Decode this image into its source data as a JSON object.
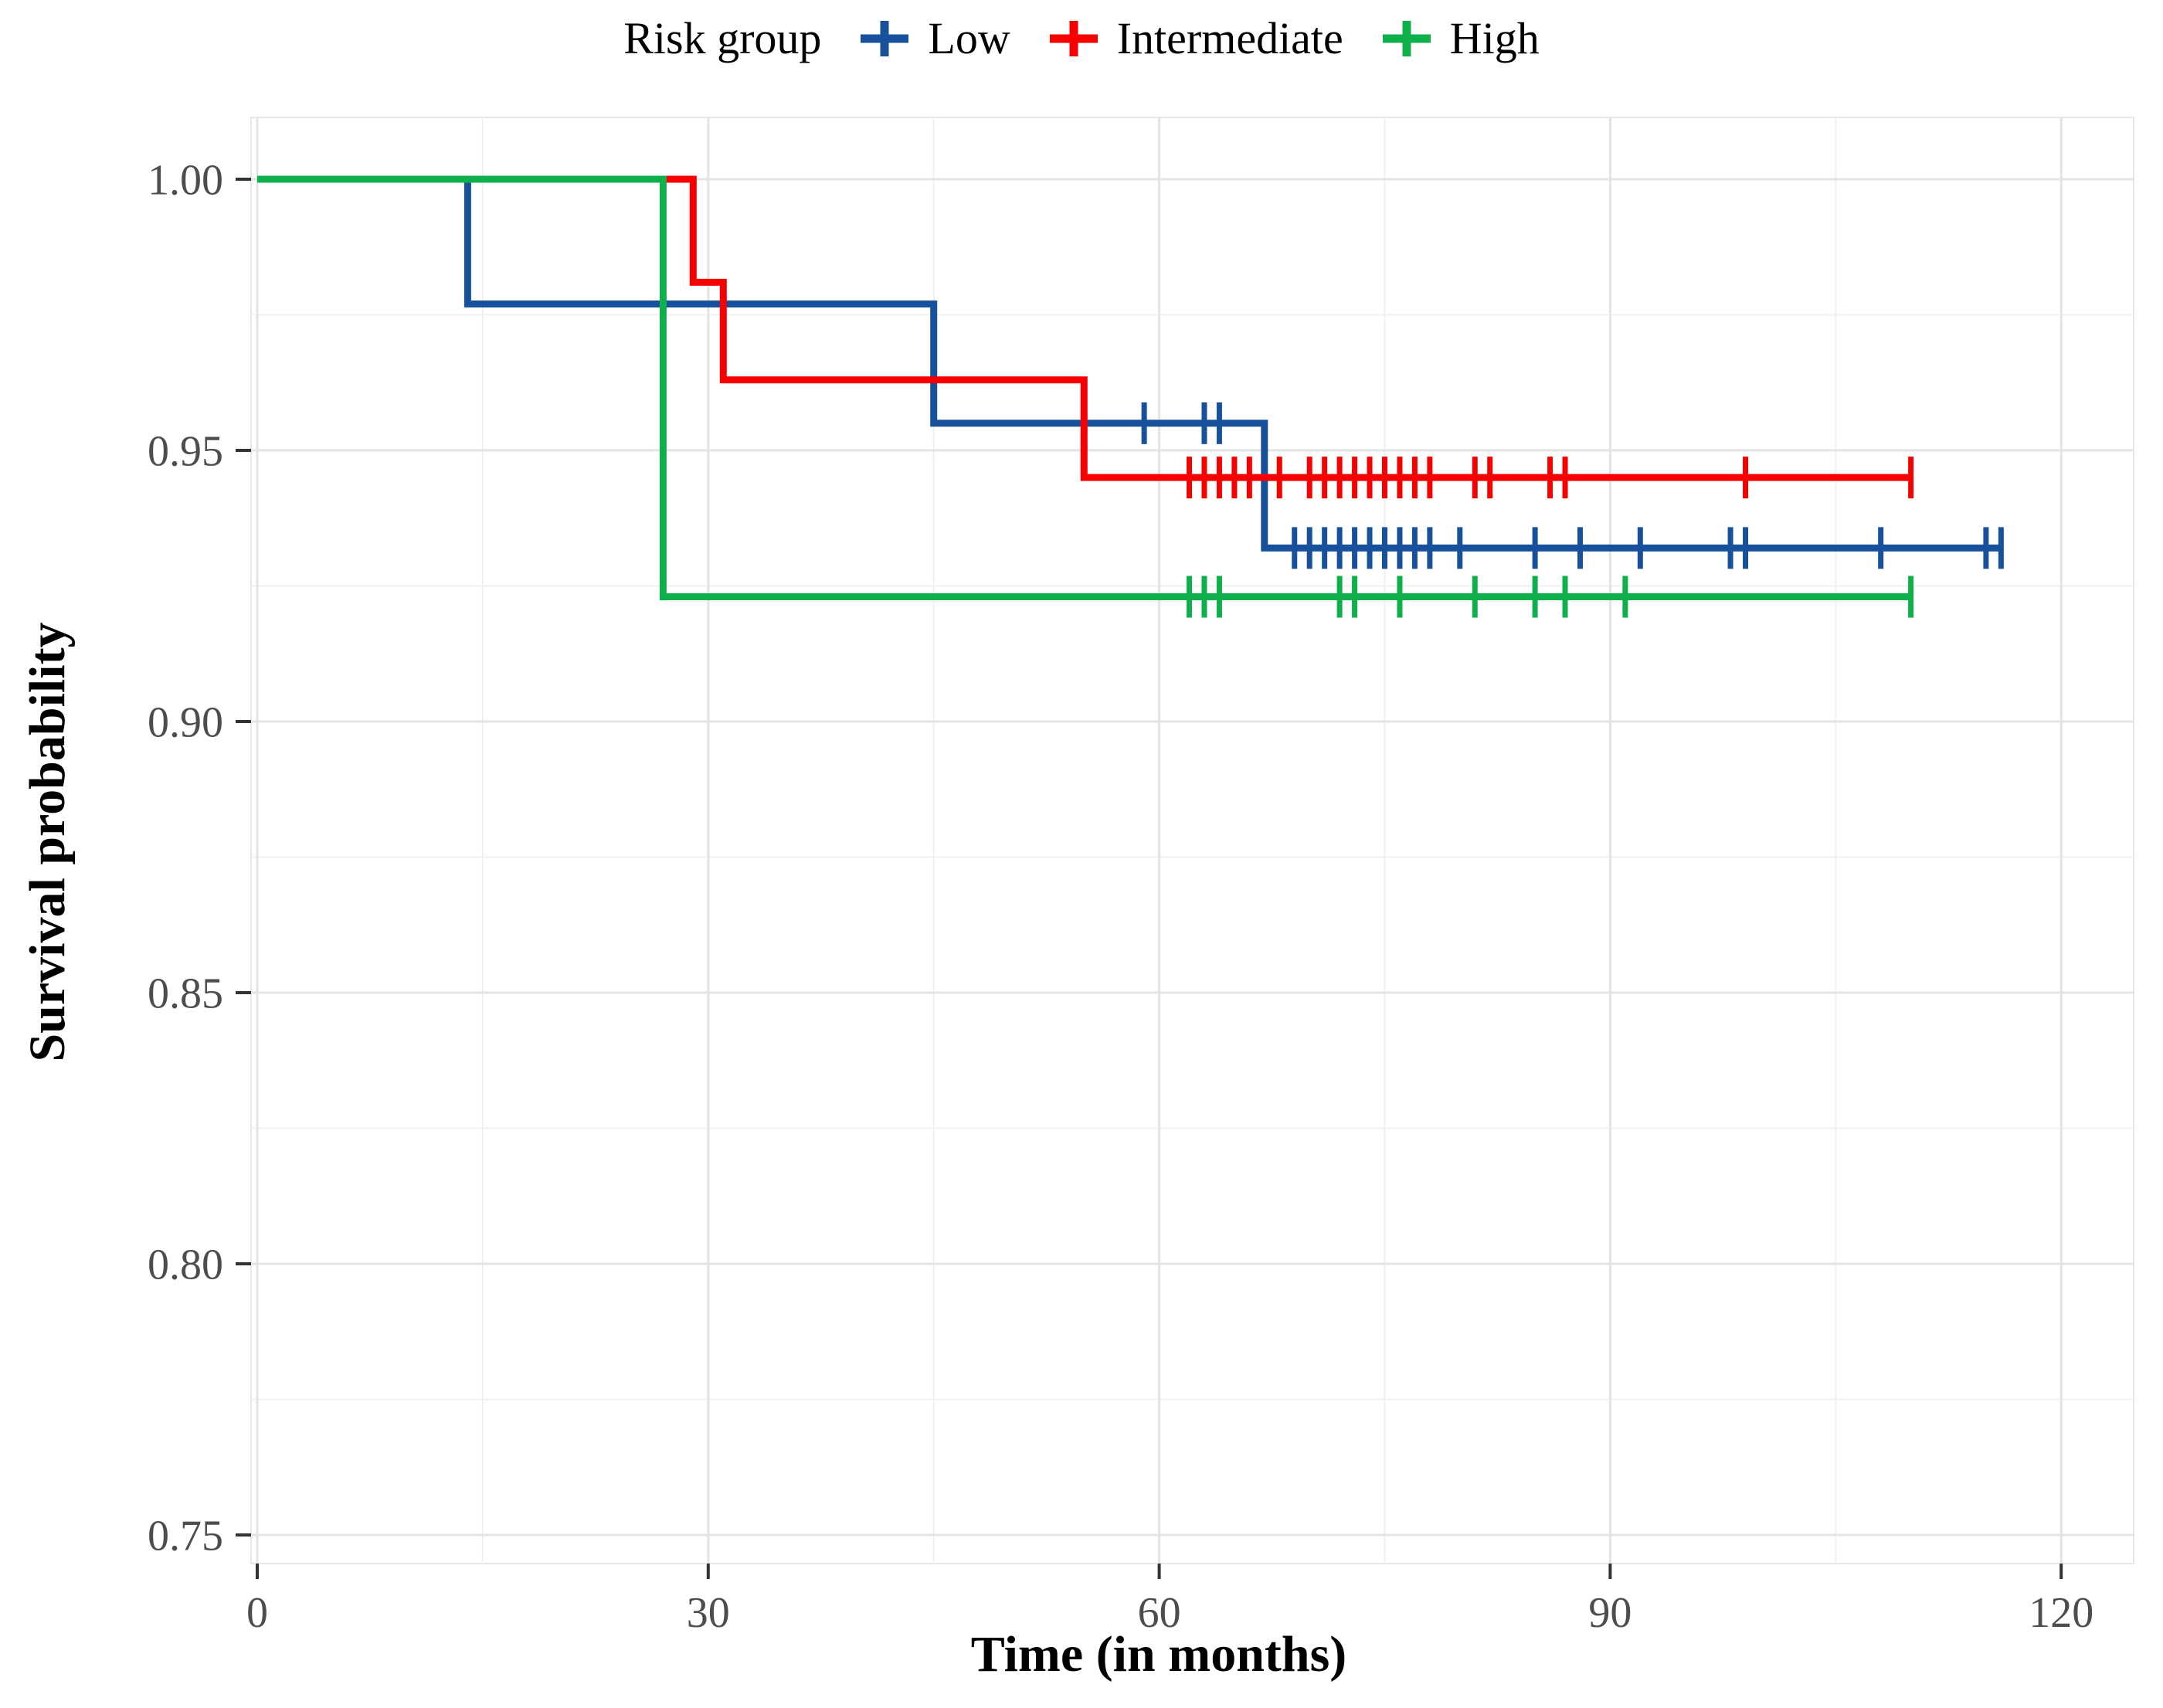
{
  "chart_data": {
    "type": "line",
    "subtype": "kaplan-meier-step-curves",
    "title": "",
    "legend_title": "Risk group",
    "legend_position": "top",
    "xlabel": "Time (in months)",
    "ylabel": "Survival probability",
    "xlim": [
      0,
      120
    ],
    "ylim": [
      0.75,
      1.0
    ],
    "xticks": [
      0,
      30,
      60,
      90,
      120
    ],
    "xtick_labels": [
      "0",
      "30",
      "60",
      "90",
      "120"
    ],
    "yticks": [
      1.0,
      0.95,
      0.9,
      0.85,
      0.8,
      0.75
    ],
    "ytick_labels": [
      "1.00",
      "0.95",
      "0.90",
      "0.85",
      "0.80",
      "0.75"
    ],
    "xticks_minor": [
      15,
      45,
      75,
      105
    ],
    "yticks_minor": [
      0.975,
      0.925,
      0.875,
      0.825,
      0.775
    ],
    "grid": true,
    "colors": {
      "background": "#FFFFFF",
      "grid_major": "#E4E4E4",
      "grid_minor": "#F1F1F1",
      "panel_border": "#E7E7E7",
      "tick_mark": "#333333",
      "tick_label": "#4D4D4D",
      "axis_title": "#000000"
    },
    "series": [
      {
        "name": "Low",
        "color": "#17519C",
        "steps": [
          [
            0,
            1.0
          ],
          [
            14,
            1.0
          ],
          [
            14,
            0.977
          ],
          [
            45,
            0.977
          ],
          [
            45,
            0.955
          ],
          [
            67,
            0.955
          ],
          [
            67,
            0.932
          ],
          [
            116,
            0.932
          ]
        ],
        "censor_marks": [
          [
            59,
            0.955
          ],
          [
            63,
            0.955
          ],
          [
            64,
            0.955
          ],
          [
            69,
            0.932
          ],
          [
            70,
            0.932
          ],
          [
            71,
            0.932
          ],
          [
            72,
            0.932
          ],
          [
            73,
            0.932
          ],
          [
            74,
            0.932
          ],
          [
            75,
            0.932
          ],
          [
            76,
            0.932
          ],
          [
            77,
            0.932
          ],
          [
            78,
            0.932
          ],
          [
            80,
            0.932
          ],
          [
            85,
            0.932
          ],
          [
            88,
            0.932
          ],
          [
            92,
            0.932
          ],
          [
            98,
            0.932
          ],
          [
            99,
            0.932
          ],
          [
            108,
            0.932
          ],
          [
            115,
            0.932
          ],
          [
            116,
            0.932
          ]
        ]
      },
      {
        "name": "Intermediate",
        "color": "#F60000",
        "steps": [
          [
            0,
            1.0
          ],
          [
            29,
            1.0
          ],
          [
            29,
            0.981
          ],
          [
            31,
            0.981
          ],
          [
            31,
            0.963
          ],
          [
            55,
            0.963
          ],
          [
            55,
            0.945
          ],
          [
            110,
            0.945
          ]
        ],
        "censor_marks": [
          [
            62,
            0.945
          ],
          [
            63,
            0.945
          ],
          [
            64,
            0.945
          ],
          [
            65,
            0.945
          ],
          [
            66,
            0.945
          ],
          [
            68,
            0.945
          ],
          [
            70,
            0.945
          ],
          [
            71,
            0.945
          ],
          [
            72,
            0.945
          ],
          [
            73,
            0.945
          ],
          [
            74,
            0.945
          ],
          [
            75,
            0.945
          ],
          [
            76,
            0.945
          ],
          [
            77,
            0.945
          ],
          [
            78,
            0.945
          ],
          [
            81,
            0.945
          ],
          [
            82,
            0.945
          ],
          [
            86,
            0.945
          ],
          [
            87,
            0.945
          ],
          [
            99,
            0.945
          ],
          [
            110,
            0.945
          ]
        ]
      },
      {
        "name": "High",
        "color": "#0DB04A",
        "steps": [
          [
            0,
            1.0
          ],
          [
            27,
            1.0
          ],
          [
            27,
            0.923
          ],
          [
            110,
            0.923
          ]
        ],
        "censor_marks": [
          [
            62,
            0.923
          ],
          [
            63,
            0.923
          ],
          [
            64,
            0.923
          ],
          [
            72,
            0.923
          ],
          [
            73,
            0.923
          ],
          [
            76,
            0.923
          ],
          [
            81,
            0.923
          ],
          [
            85,
            0.923
          ],
          [
            87,
            0.923
          ],
          [
            91,
            0.923
          ],
          [
            110,
            0.923
          ]
        ]
      }
    ]
  }
}
